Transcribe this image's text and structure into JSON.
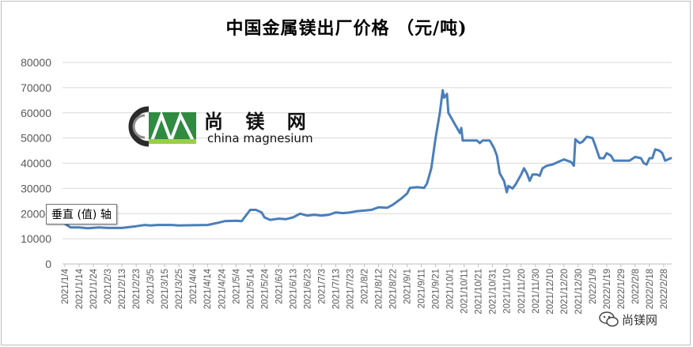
{
  "chart_data": {
    "type": "line",
    "title": "中国金属镁出厂价格 （元/吨)",
    "ylim": [
      0,
      80000
    ],
    "yticks": [
      "0",
      "10000",
      "20000",
      "30000",
      "40000",
      "50000",
      "60000",
      "70000",
      "80000"
    ],
    "grid": "horizontal",
    "legend": "none",
    "line_color": "#4A7EBB",
    "xlabels": [
      "2021/1/4",
      "2021/1/14",
      "2021/1/24",
      "2021/2/3",
      "2021/2/13",
      "2021/2/23",
      "2021/3/5",
      "2021/3/15",
      "2021/3/25",
      "2021/4/4",
      "2021/4/14",
      "2021/4/24",
      "2021/5/4",
      "2021/5/14",
      "2021/5/24",
      "2021/6/3",
      "2021/6/13",
      "2021/6/23",
      "2021/7/3",
      "2021/7/13",
      "2021/7/23",
      "2021/8/2",
      "2021/8/12",
      "2021/8/22",
      "2021/9/1",
      "2021/9/11",
      "2021/9/21",
      "2021/10/1",
      "2021/10/11",
      "2021/10/21",
      "2021/10/31",
      "2021/11/10",
      "2021/11/20",
      "2021/11/30",
      "2021/12/10",
      "2021/12/20",
      "2021/12/30",
      "2022/1/9",
      "2022/1/19",
      "2022/1/29",
      "2022/2/8",
      "2022/2/18",
      "2022/2/28"
    ],
    "points": [
      [
        "2021/1/4",
        16000
      ],
      [
        "2021/1/8",
        14500
      ],
      [
        "2021/1/14",
        14500
      ],
      [
        "2021/1/20",
        14200
      ],
      [
        "2021/1/28",
        14500
      ],
      [
        "2021/2/3",
        14300
      ],
      [
        "2021/2/13",
        14300
      ],
      [
        "2021/2/23",
        15000
      ],
      [
        "2021/3/1",
        15500
      ],
      [
        "2021/3/5",
        15300
      ],
      [
        "2021/3/10",
        15500
      ],
      [
        "2021/3/20",
        15500
      ],
      [
        "2021/3/25",
        15300
      ],
      [
        "2021/4/4",
        15400
      ],
      [
        "2021/4/14",
        15500
      ],
      [
        "2021/4/20",
        16200
      ],
      [
        "2021/4/26",
        17000
      ],
      [
        "2021/5/4",
        17200
      ],
      [
        "2021/5/8",
        17000
      ],
      [
        "2021/5/10",
        18500
      ],
      [
        "2021/5/14",
        21500
      ],
      [
        "2021/5/18",
        21500
      ],
      [
        "2021/5/22",
        20500
      ],
      [
        "2021/5/24",
        18500
      ],
      [
        "2021/5/28",
        17500
      ],
      [
        "2021/6/3",
        18000
      ],
      [
        "2021/6/8",
        17800
      ],
      [
        "2021/6/13",
        18500
      ],
      [
        "2021/6/18",
        20000
      ],
      [
        "2021/6/23",
        19200
      ],
      [
        "2021/6/28",
        19500
      ],
      [
        "2021/7/3",
        19200
      ],
      [
        "2021/7/8",
        19500
      ],
      [
        "2021/7/13",
        20500
      ],
      [
        "2021/7/18",
        20200
      ],
      [
        "2021/7/23",
        20500
      ],
      [
        "2021/7/28",
        21000
      ],
      [
        "2021/8/2",
        21200
      ],
      [
        "2021/8/7",
        21500
      ],
      [
        "2021/8/12",
        22500
      ],
      [
        "2021/8/18",
        22300
      ],
      [
        "2021/8/22",
        23500
      ],
      [
        "2021/8/28",
        26000
      ],
      [
        "2021/9/1",
        28000
      ],
      [
        "2021/9/3",
        30200
      ],
      [
        "2021/9/8",
        30500
      ],
      [
        "2021/9/13",
        30200
      ],
      [
        "2021/9/15",
        32000
      ],
      [
        "2021/9/18",
        38000
      ],
      [
        "2021/9/21",
        50000
      ],
      [
        "2021/9/24",
        60000
      ],
      [
        "2021/9/26",
        69000
      ],
      [
        "2021/9/27",
        66000
      ],
      [
        "2021/9/29",
        67500
      ],
      [
        "2021/9/30",
        60000
      ],
      [
        "2021/10/8",
        52000
      ],
      [
        "2021/10/9",
        54000
      ],
      [
        "2021/10/10",
        49000
      ],
      [
        "2021/10/20",
        49000
      ],
      [
        "2021/10/22",
        48000
      ],
      [
        "2021/10/24",
        49000
      ],
      [
        "2021/10/29",
        49000
      ],
      [
        "2021/11/1",
        46000
      ],
      [
        "2021/11/3",
        43000
      ],
      [
        "2021/11/5",
        36000
      ],
      [
        "2021/11/8",
        33000
      ],
      [
        "2021/11/10",
        28500
      ],
      [
        "2021/11/11",
        31000
      ],
      [
        "2021/11/14",
        30000
      ],
      [
        "2021/11/16",
        31500
      ],
      [
        "2021/11/18",
        33500
      ],
      [
        "2021/11/20",
        35500
      ],
      [
        "2021/11/22",
        38000
      ],
      [
        "2021/11/24",
        36000
      ],
      [
        "2021/11/26",
        33000
      ],
      [
        "2021/11/28",
        35500
      ],
      [
        "2021/12/1",
        35500
      ],
      [
        "2021/12/3",
        35000
      ],
      [
        "2021/12/5",
        38000
      ],
      [
        "2021/12/8",
        39000
      ],
      [
        "2021/12/12",
        39500
      ],
      [
        "2021/12/16",
        40500
      ],
      [
        "2021/12/20",
        41500
      ],
      [
        "2021/12/25",
        40500
      ],
      [
        "2021/12/27",
        39000
      ],
      [
        "2021/12/28",
        49500
      ],
      [
        "2021/12/31",
        48000
      ],
      [
        "2022/1/2",
        48500
      ],
      [
        "2022/1/5",
        50500
      ],
      [
        "2022/1/9",
        50000
      ],
      [
        "2022/1/11",
        47000
      ],
      [
        "2022/1/14",
        42000
      ],
      [
        "2022/1/17",
        42000
      ],
      [
        "2022/1/19",
        44000
      ],
      [
        "2022/1/22",
        43000
      ],
      [
        "2022/1/24",
        41000
      ],
      [
        "2022/1/29",
        41000
      ],
      [
        "2022/2/4",
        41000
      ],
      [
        "2022/2/8",
        42500
      ],
      [
        "2022/2/12",
        42000
      ],
      [
        "2022/2/14",
        40000
      ],
      [
        "2022/2/16",
        39500
      ],
      [
        "2022/2/18",
        42000
      ],
      [
        "2022/2/20",
        42000
      ],
      [
        "2022/2/22",
        45500
      ],
      [
        "2022/2/25",
        45000
      ],
      [
        "2022/2/27",
        44000
      ],
      [
        "2022/3/1",
        41000
      ],
      [
        "2022/3/5",
        42000
      ]
    ]
  },
  "tooltip": "垂直 (值) 轴",
  "logo": {
    "brand_cn": "尚 镁 网",
    "brand_en": "china magnesium"
  },
  "watermark": "尚镁网"
}
